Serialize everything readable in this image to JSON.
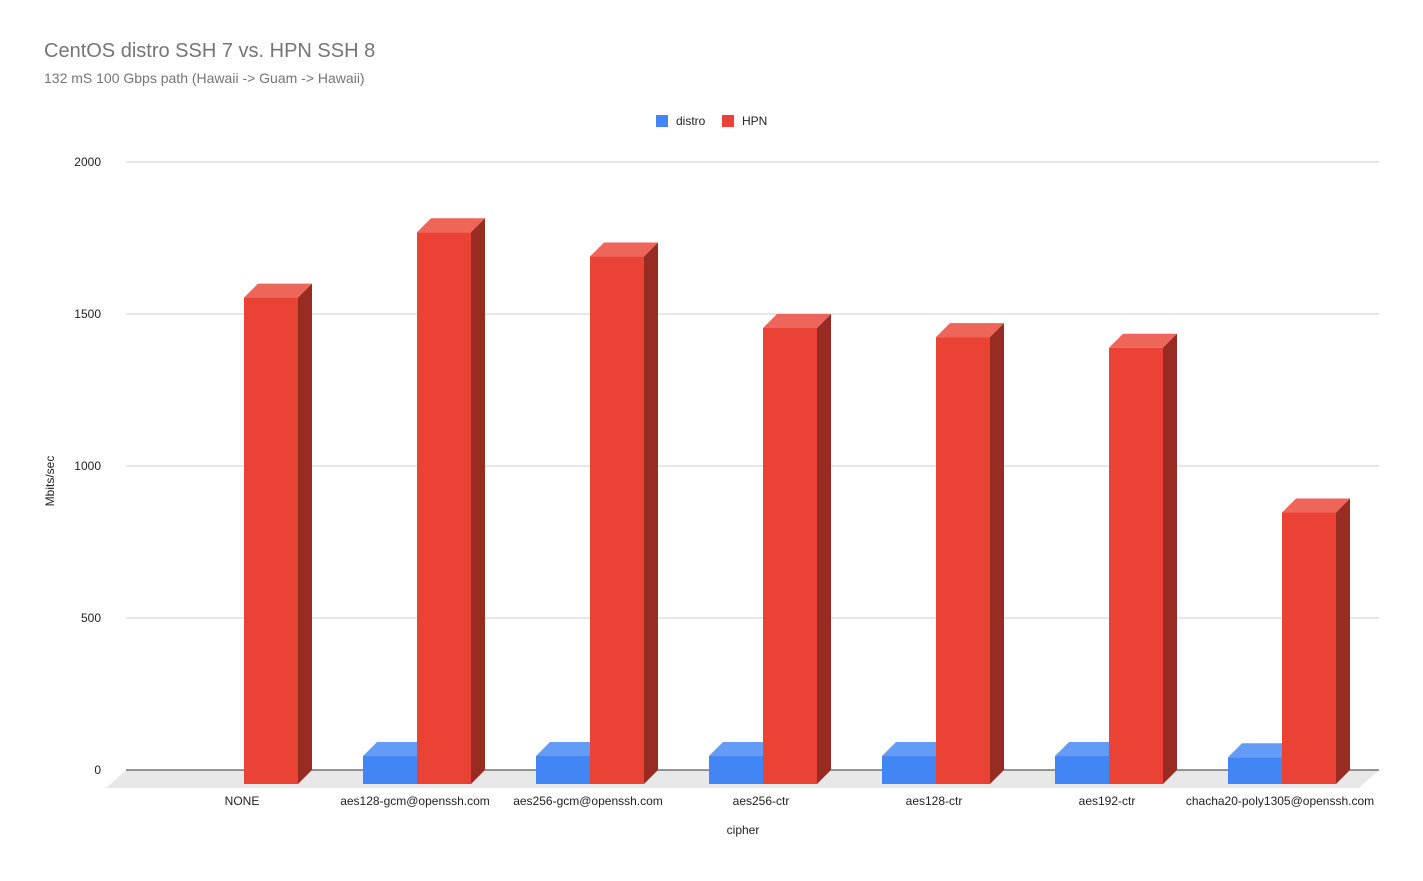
{
  "chart_data": {
    "type": "bar",
    "title": "CentOS distro SSH 7 vs.  HPN SSH 8",
    "subtitle": "132 mS 100 Gbps path (Hawaii -> Guam -> Hawaii)",
    "xlabel": "cipher",
    "ylabel": "Mbits/sec",
    "ylim": [
      0,
      2000
    ],
    "yticks": [
      0,
      500,
      1000,
      1500,
      2000
    ],
    "grid": true,
    "legend_position": "top",
    "three_d": true,
    "categories": [
      "NONE",
      "aes128-gcm@openssh.com",
      "aes256-gcm@openssh.com",
      "aes256-ctr",
      "aes128-ctr",
      "aes192-ctr",
      "chacha20-poly1305@openssh.com"
    ],
    "series": [
      {
        "name": "distro",
        "color": "#4285f4",
        "values": [
          0,
          92,
          92,
          92,
          92,
          92,
          88
        ]
      },
      {
        "name": "HPN",
        "color": "#ea4335",
        "values": [
          1600,
          1815,
          1735,
          1500,
          1470,
          1435,
          893
        ]
      }
    ]
  }
}
